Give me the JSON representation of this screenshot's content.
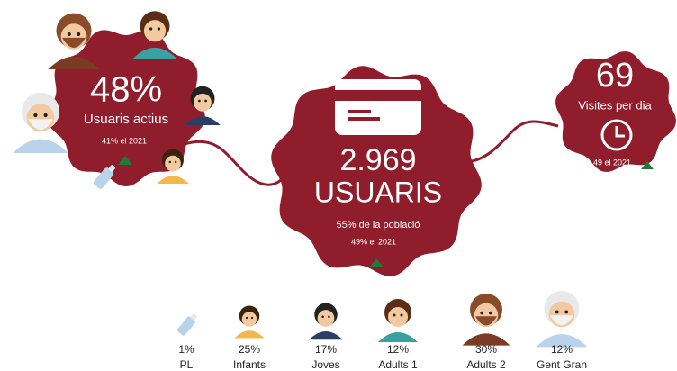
{
  "left": {
    "value": "48%",
    "label": "Usuaris actius",
    "previous": "41% el 2021"
  },
  "center": {
    "value": "2.969",
    "label": "USUARIS",
    "share": "55% de la població",
    "previous": "49% el 2021"
  },
  "right": {
    "value": "69",
    "label": "Visites per dia",
    "previous": "49 el 2021"
  },
  "groups": [
    {
      "percent": "1%",
      "name": "PL"
    },
    {
      "percent": "25%",
      "name": "Infants"
    },
    {
      "percent": "17%",
      "name": "Joves"
    },
    {
      "percent": "12%",
      "name": "Adults 1"
    },
    {
      "percent": "30%",
      "name": "Adults 2"
    },
    {
      "percent": "12%",
      "name": "Gent Gran"
    }
  ]
}
